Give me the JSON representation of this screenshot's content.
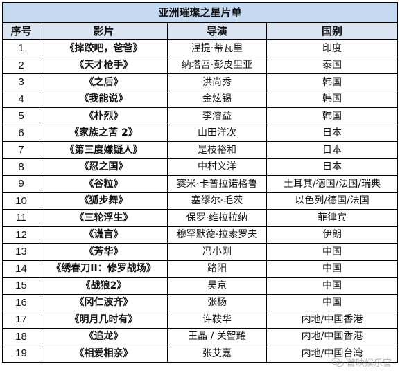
{
  "table": {
    "title": "亚洲璀璨之星片单",
    "headers": [
      "序号",
      "影片",
      "导演",
      "国别"
    ],
    "rows": [
      {
        "no": "1",
        "film": "《摔跤吧，爸爸》",
        "director": "涅提·蒂瓦里",
        "country": "印度"
      },
      {
        "no": "2",
        "film": "《天才枪手》",
        "director": "纳塔吾·彭皮里亚",
        "country": "泰国"
      },
      {
        "no": "3",
        "film": "《之后》",
        "director": "洪尚秀",
        "country": "韩国"
      },
      {
        "no": "4",
        "film": "《我能说》",
        "director": "金炫锡",
        "country": "韩国"
      },
      {
        "no": "5",
        "film": "《朴烈》",
        "director": "李濬益",
        "country": "韩国"
      },
      {
        "no": "6",
        "film": "《家族之苦 2》",
        "director": "山田洋次",
        "country": "日本"
      },
      {
        "no": "7",
        "film": "《第三度嫌疑人》",
        "director": "是枝裕和",
        "country": "日本"
      },
      {
        "no": "8",
        "film": "《忍之国》",
        "director": "中村义洋",
        "country": "日本"
      },
      {
        "no": "9",
        "film": "《谷粒》",
        "director": "赛米·卡普拉诺格鲁",
        "country": "土耳其/德国/法国/瑞典"
      },
      {
        "no": "10",
        "film": "《狐步舞》",
        "director": "塞缪尔·毛茨",
        "country": "以色列/德国/法国"
      },
      {
        "no": "11",
        "film": "《三轮浮生》",
        "director": "保罗·维拉拉纳",
        "country": "菲律宾"
      },
      {
        "no": "12",
        "film": "《谎言》",
        "director": "穆罕默德·拉索罗夫",
        "country": "伊朗"
      },
      {
        "no": "13",
        "film": "《芳华》",
        "director": "冯小刚",
        "country": "中国"
      },
      {
        "no": "14",
        "film": "《绣春刀II：修罗战场》",
        "director": "路阳",
        "country": "中国"
      },
      {
        "no": "15",
        "film": "《战狼2》",
        "director": "吴京",
        "country": "中国"
      },
      {
        "no": "16",
        "film": "《冈仁波齐》",
        "director": "张杨",
        "country": "中国"
      },
      {
        "no": "17",
        "film": "《明月几时有》",
        "director": "许鞍华",
        "country": "内地/中国香港"
      },
      {
        "no": "18",
        "film": "《追龙》",
        "director": "王晶 / 关智耀",
        "country": "内地/中国香港"
      },
      {
        "no": "19",
        "film": "《相爱相亲》",
        "director": "张艾嘉",
        "country": "内地/中国台湾"
      }
    ]
  },
  "watermark": {
    "text": "首映娱乐官",
    "icon": "wechat-icon"
  }
}
